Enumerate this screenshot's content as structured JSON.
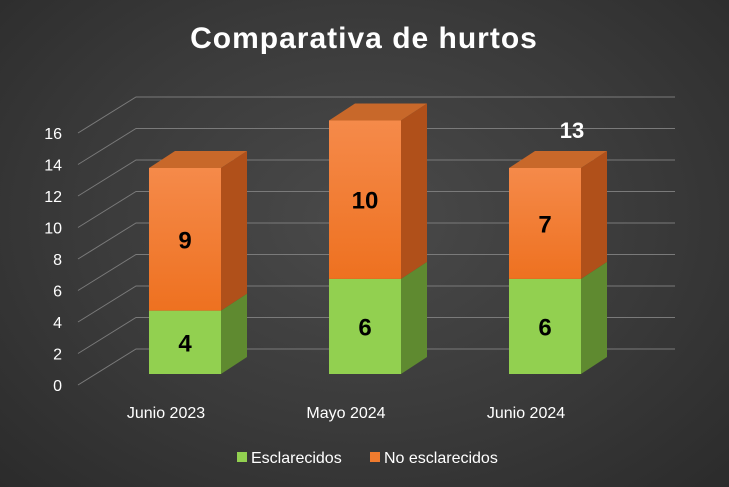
{
  "chart_data": {
    "type": "bar",
    "stacked": true,
    "three_d": true,
    "title": "Comparativa de hurtos",
    "categories": [
      "Junio 2023",
      "Mayo 2024",
      "Junio 2024"
    ],
    "series": [
      {
        "name": "Esclarecidos",
        "values": [
          4,
          6,
          6
        ],
        "color": "#92d050",
        "side_color": "#5f8a30",
        "top_color": "#7cb340"
      },
      {
        "name": "No esclarecidos",
        "values": [
          9,
          10,
          7
        ],
        "color": "#f07b2e",
        "side_color": "#b0501a",
        "top_color": "#c8682a"
      }
    ],
    "totals": [
      null,
      null,
      13
    ],
    "yticks": [
      "0",
      "2",
      "4",
      "6",
      "8",
      "10",
      "12",
      "14",
      "16"
    ],
    "ylim": [
      0,
      16
    ],
    "grid": true,
    "legend_position": "bottom"
  }
}
